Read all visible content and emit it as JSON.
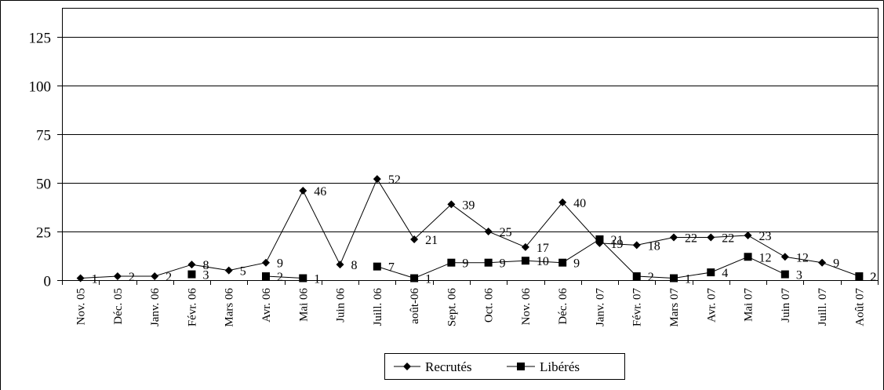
{
  "chart_data": {
    "type": "line",
    "title": "",
    "xlabel": "",
    "ylabel": "",
    "categories": [
      "Nov. 05",
      "Déc. 05",
      "Janv. 06",
      "Févr. 06",
      "Mars 06",
      "Avr. 06",
      "Mai 06",
      "Juin 06",
      "Juill. 06",
      "août-06",
      "Sept. 06",
      "Oct. 06",
      "Nov. 06",
      "Déc. 06",
      "Janv. 07",
      "Févr. 07",
      "Mars 07",
      "Avr. 07",
      "Mai 07",
      "Juin 07",
      "Juill. 07",
      "Août 07"
    ],
    "ylim": [
      0,
      140
    ],
    "yticks": [
      0,
      25,
      50,
      75,
      100,
      125
    ],
    "ytick_labels": [
      "0",
      "25",
      "50",
      "75",
      "100",
      "125"
    ],
    "grid": true,
    "legend_position": "bottom",
    "series": [
      {
        "name": "Recrutés",
        "marker": "diamond",
        "values": [
          1,
          2,
          2,
          8,
          5,
          9,
          46,
          8,
          52,
          21,
          39,
          25,
          17,
          40,
          19,
          18,
          22,
          22,
          23,
          12,
          9,
          2
        ],
        "labels": [
          "1",
          "2",
          "2",
          "8",
          "5",
          "9",
          "46",
          "8",
          "52",
          "21",
          "39",
          "25",
          "17",
          "40",
          "19",
          "18",
          "22",
          "22",
          "23",
          "12",
          "9",
          "2"
        ]
      },
      {
        "name": "Libérés",
        "marker": "square",
        "values": [
          null,
          null,
          null,
          3,
          null,
          2,
          1,
          null,
          7,
          1,
          9,
          9,
          10,
          9,
          21,
          2,
          1,
          4,
          12,
          3,
          null,
          2
        ],
        "labels": [
          null,
          null,
          null,
          "3",
          null,
          "2",
          "1",
          null,
          "7",
          "1",
          "9",
          "9",
          "10",
          "9",
          "21",
          "2",
          "1",
          "4",
          "12",
          "3",
          null,
          "2"
        ]
      }
    ]
  }
}
